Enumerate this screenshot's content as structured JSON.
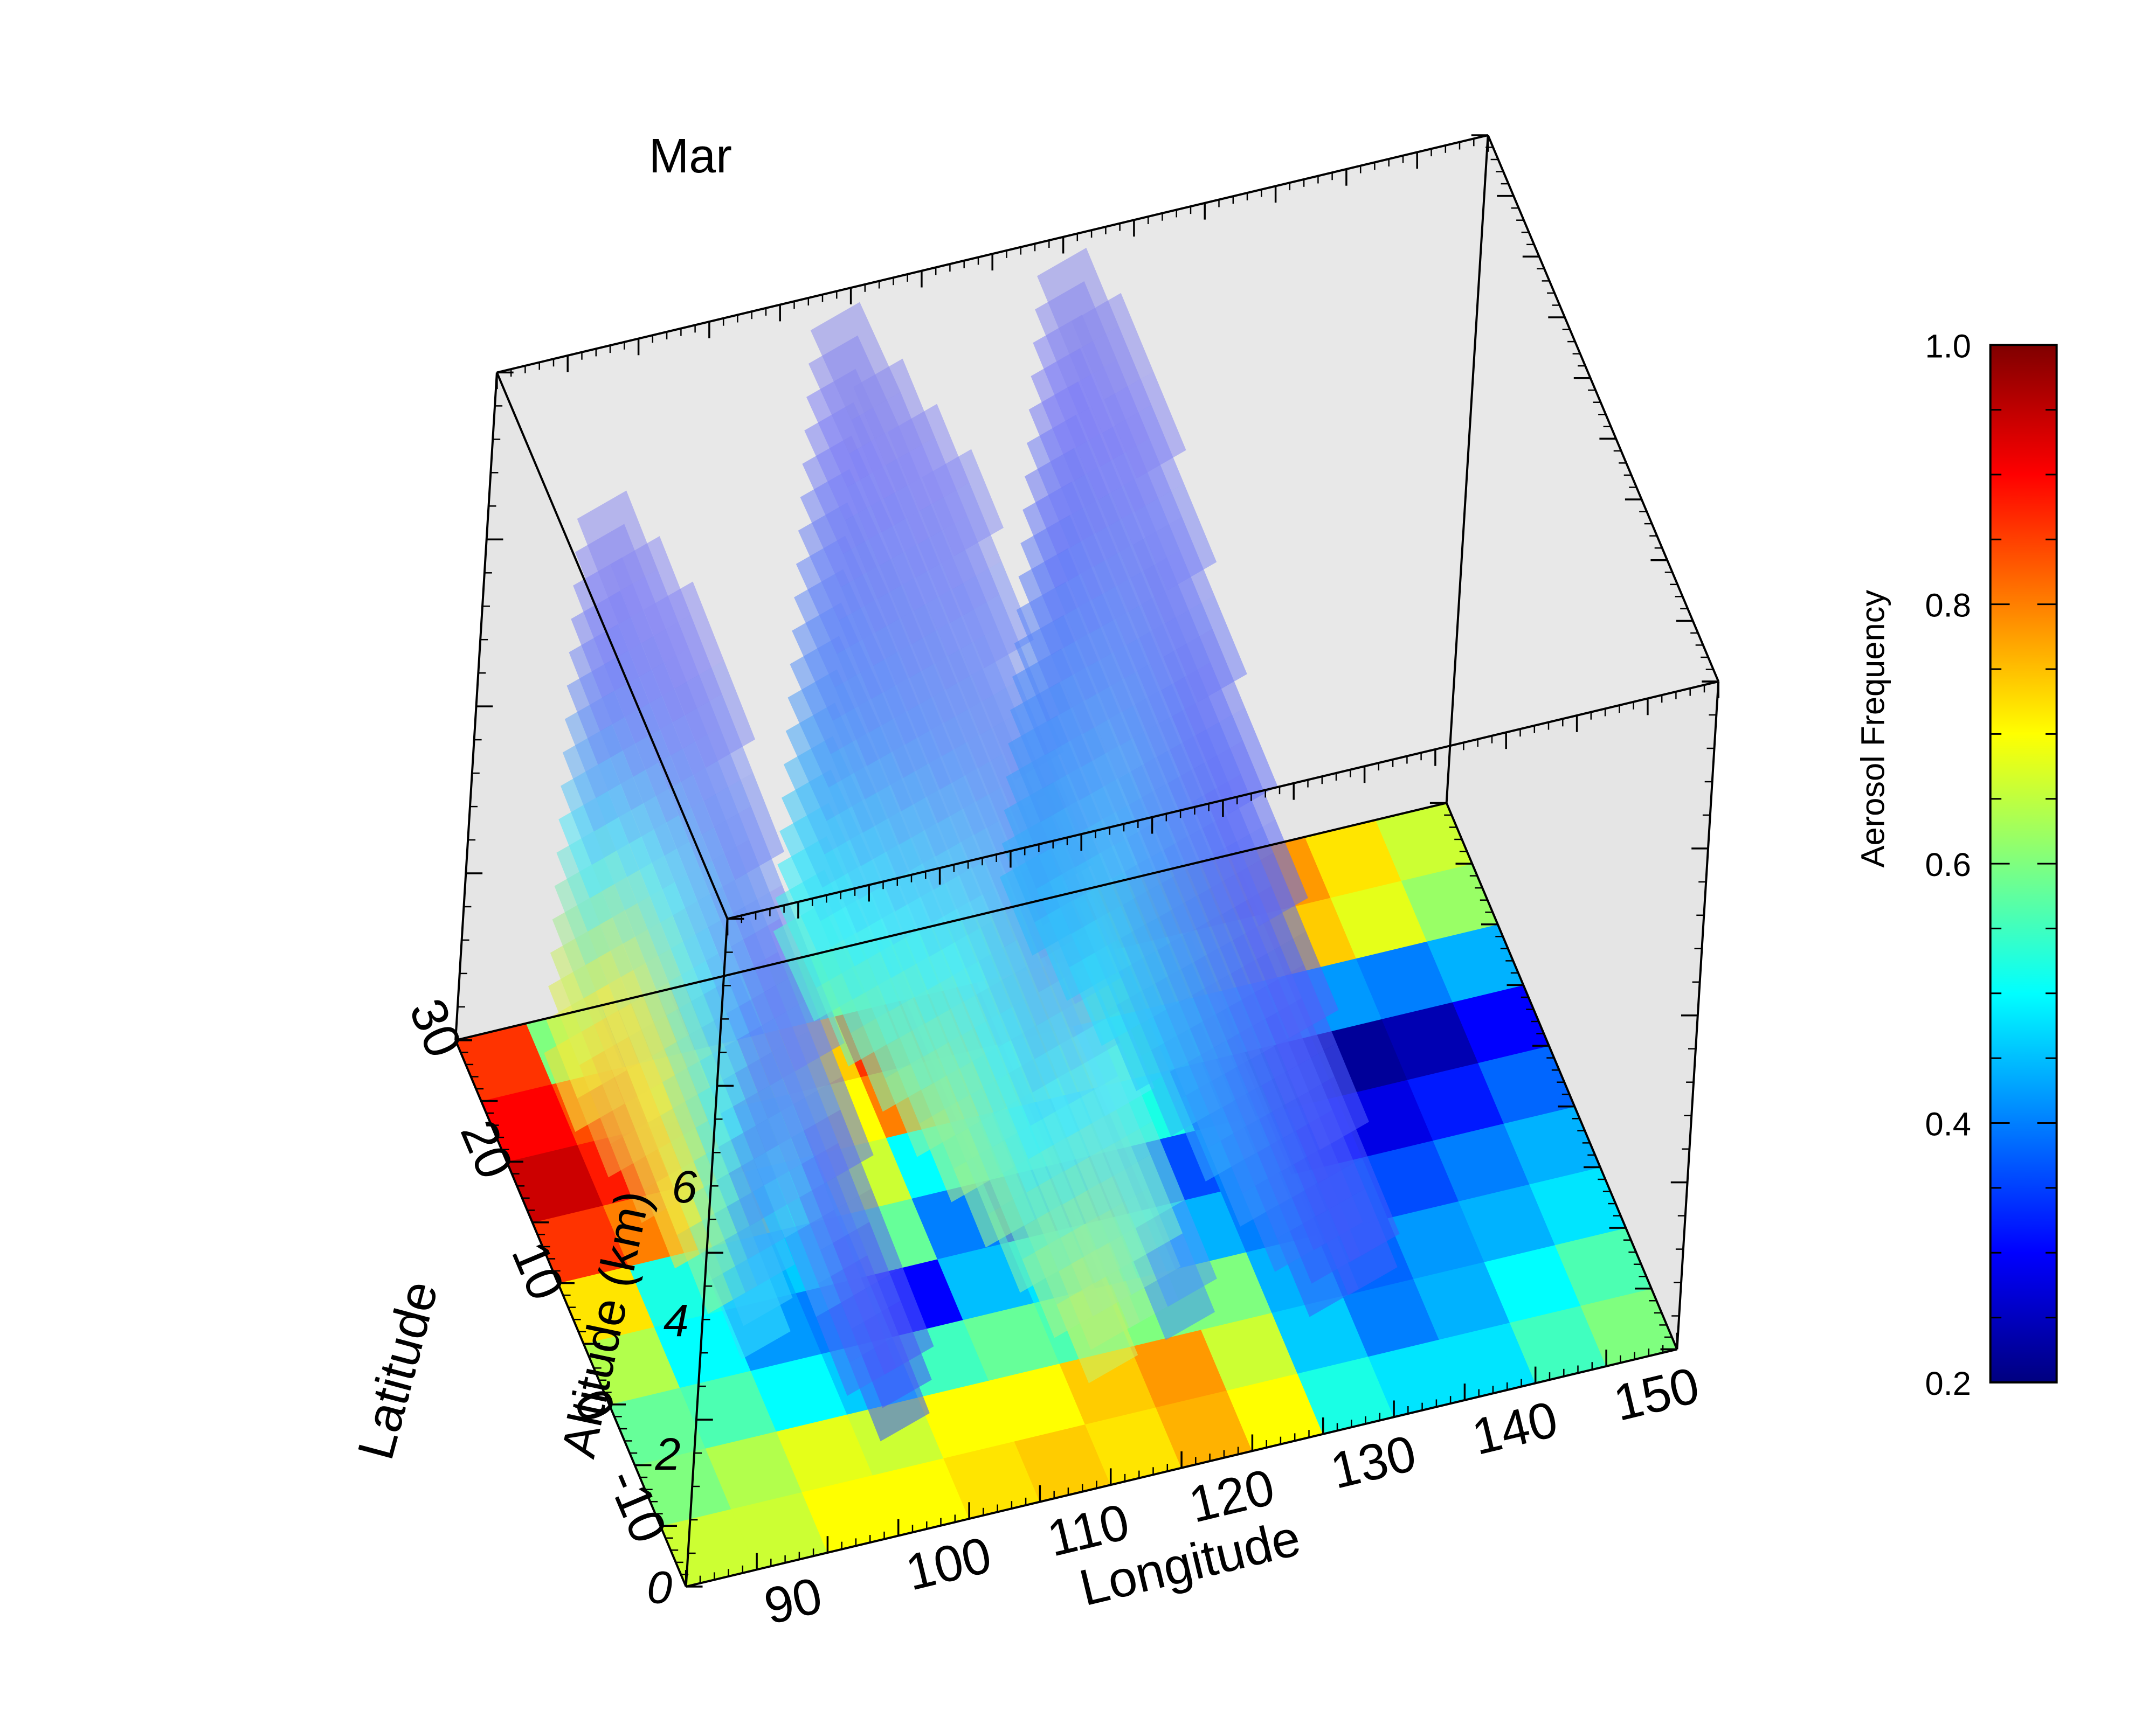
{
  "chart_data": {
    "type": "heatmap",
    "title": "Mar",
    "xlabel": "Longitude",
    "ylabel": "Latitude",
    "zlabel": "Altitude (km)",
    "x_ticks": [
      "90",
      "100",
      "110",
      "120",
      "130",
      "140",
      "150"
    ],
    "y_ticks": [
      "-10",
      "0",
      "10",
      "20",
      "30"
    ],
    "z_ticks": [
      "0",
      "2",
      "4",
      "6"
    ],
    "xlim": [
      80,
      150
    ],
    "ylim": [
      -15,
      30
    ],
    "zlim": [
      0,
      10
    ],
    "colorbar": {
      "label": "Aerosol Frequency",
      "range": [
        0.2,
        1.0
      ],
      "ticks": [
        "0.2",
        "0.4",
        "0.6",
        "0.8",
        "1.0"
      ],
      "colors": [
        "#00007f",
        "#0000ff",
        "#007fff",
        "#00ffff",
        "#7fff7f",
        "#ffff00",
        "#ff7f00",
        "#ff0000",
        "#7f0000"
      ]
    },
    "map": {
      "lon_edges": [
        80,
        85,
        90,
        95,
        100,
        105,
        110,
        115,
        120,
        125,
        130,
        135,
        140,
        145,
        150
      ],
      "lat_edges": [
        -15,
        -10,
        -5,
        0,
        5,
        10,
        15,
        20,
        25,
        30
      ],
      "values": [
        [
          0.66,
          0.66,
          0.7,
          0.7,
          0.72,
          0.74,
          0.72,
          0.76,
          0.7,
          0.52,
          0.48,
          0.48,
          0.55,
          0.6
        ],
        [
          0.6,
          0.64,
          0.68,
          0.66,
          0.7,
          0.7,
          0.74,
          0.78,
          0.66,
          0.46,
          0.4,
          0.44,
          0.5,
          0.56
        ],
        [
          0.58,
          0.56,
          0.5,
          0.46,
          0.55,
          0.58,
          0.56,
          0.6,
          0.6,
          0.44,
          0.38,
          0.42,
          0.44,
          0.48
        ],
        [
          0.64,
          0.5,
          0.42,
          0.4,
          0.3,
          0.45,
          0.48,
          0.52,
          0.44,
          0.4,
          0.38,
          0.36,
          0.4,
          0.44
        ],
        [
          0.72,
          0.52,
          0.44,
          0.46,
          0.58,
          0.4,
          0.3,
          0.32,
          0.36,
          0.4,
          0.3,
          0.28,
          0.32,
          0.38
        ],
        [
          0.86,
          0.8,
          0.74,
          0.52,
          0.66,
          0.5,
          0.52,
          0.44,
          0.52,
          0.38,
          0.24,
          0.22,
          0.24,
          0.3
        ],
        [
          0.94,
          0.88,
          0.8,
          0.6,
          0.7,
          0.8,
          0.74,
          0.7,
          0.56,
          0.52,
          0.46,
          0.42,
          0.4,
          0.44
        ],
        [
          0.9,
          0.84,
          0.78,
          0.68,
          0.74,
          0.86,
          0.8,
          0.72,
          0.72,
          0.66,
          0.7,
          0.74,
          0.68,
          0.62
        ],
        [
          0.86,
          0.6,
          0.4,
          0.32,
          0.56,
          0.6,
          0.64,
          0.66,
          0.76,
          0.8,
          0.8,
          0.78,
          0.72,
          0.66
        ]
      ]
    },
    "curtains": [
      {
        "track": [
          [
            95,
            -15
          ],
          [
            86,
            25
          ]
        ],
        "z_edges": [
          0,
          0.5,
          1,
          1.5,
          2,
          2.5,
          3,
          3.5,
          4,
          4.5,
          5,
          5.5,
          6,
          6.5,
          7,
          7.5,
          8,
          8.5
        ],
        "lat_edges": [
          -15,
          -11,
          -7,
          -3,
          1,
          5,
          9,
          13,
          17,
          21,
          25
        ],
        "values": [
          [
            null,
            null,
            null,
            null,
            0.48,
            0.6,
            0.72,
            0.76,
            0.78,
            0.72
          ],
          [
            null,
            null,
            null,
            null,
            0.46,
            0.58,
            0.7,
            0.74,
            0.76,
            0.7
          ],
          [
            null,
            null,
            null,
            null,
            0.44,
            0.56,
            0.68,
            0.72,
            0.74,
            0.68
          ],
          [
            0.34,
            0.36,
            null,
            null,
            0.42,
            0.54,
            0.64,
            0.7,
            0.72,
            0.66
          ],
          [
            0.32,
            0.34,
            0.4,
            null,
            0.4,
            0.52,
            0.6,
            0.68,
            0.7,
            0.62
          ],
          [
            0.32,
            0.33,
            0.38,
            0.44,
            0.4,
            0.5,
            0.58,
            0.66,
            0.66,
            0.58
          ],
          [
            null,
            0.32,
            0.36,
            0.42,
            0.38,
            0.48,
            0.56,
            0.62,
            0.62,
            0.54
          ],
          [
            null,
            null,
            0.34,
            0.4,
            0.38,
            0.46,
            0.52,
            0.58,
            0.58,
            0.5
          ],
          [
            null,
            null,
            0.33,
            0.38,
            0.36,
            0.44,
            0.5,
            0.54,
            0.54,
            0.46
          ],
          [
            null,
            null,
            null,
            0.36,
            0.36,
            0.42,
            0.46,
            0.5,
            0.48,
            0.42
          ],
          [
            null,
            null,
            null,
            0.34,
            0.34,
            0.4,
            0.44,
            0.46,
            0.44,
            0.4
          ],
          [
            null,
            null,
            null,
            null,
            0.33,
            0.38,
            0.42,
            0.42,
            0.4,
            0.36
          ],
          [
            null,
            null,
            null,
            null,
            null,
            0.36,
            0.38,
            0.38,
            0.36,
            0.34
          ],
          [
            null,
            null,
            null,
            null,
            null,
            0.34,
            0.36,
            0.35,
            0.34,
            0.32
          ],
          [
            null,
            null,
            null,
            null,
            null,
            null,
            0.34,
            0.33,
            0.32,
            0.31
          ],
          [
            null,
            null,
            null,
            null,
            null,
            null,
            0.32,
            0.31,
            0.31,
            0.3
          ],
          [
            null,
            null,
            null,
            null,
            null,
            null,
            null,
            0.3,
            0.3,
            0.29
          ]
        ]
      },
      {
        "track": [
          [
            115,
            -15
          ],
          [
            104,
            30
          ]
        ],
        "z_edges": [
          0,
          0.5,
          1,
          1.5,
          2,
          2.5,
          3,
          3.5,
          4,
          4.5,
          5,
          5.5,
          6,
          6.5,
          7,
          7.5,
          8,
          8.5,
          9,
          9.5
        ],
        "lat_edges": [
          -15,
          -11,
          -7,
          -3,
          1,
          5,
          9,
          13,
          17,
          21,
          25,
          30
        ],
        "values": [
          [
            null,
            null,
            0.66,
            0.62,
            0.58,
            0.6,
            0.62,
            0.6,
            0.58,
            0.56,
            0.54
          ],
          [
            null,
            null,
            0.64,
            0.6,
            0.56,
            0.58,
            0.6,
            0.58,
            0.56,
            0.54,
            0.52
          ],
          [
            null,
            null,
            0.62,
            0.58,
            0.54,
            0.56,
            0.58,
            0.56,
            0.54,
            0.52,
            0.5
          ],
          [
            null,
            0.6,
            0.6,
            0.56,
            0.52,
            0.54,
            0.56,
            0.54,
            0.52,
            0.5,
            0.48
          ],
          [
            0.4,
            0.58,
            0.58,
            0.54,
            0.5,
            0.52,
            0.54,
            0.52,
            0.5,
            0.48,
            0.46
          ],
          [
            0.4,
            0.56,
            0.56,
            0.52,
            0.48,
            0.5,
            0.52,
            0.5,
            0.48,
            0.46,
            0.44
          ],
          [
            null,
            0.54,
            0.54,
            0.5,
            0.46,
            0.48,
            0.5,
            0.48,
            0.46,
            0.44,
            0.42
          ],
          [
            null,
            null,
            0.52,
            0.48,
            0.45,
            0.46,
            0.48,
            0.46,
            0.44,
            0.42,
            0.4
          ],
          [
            null,
            null,
            0.5,
            0.46,
            0.44,
            0.45,
            0.46,
            0.44,
            0.42,
            0.4,
            0.38
          ],
          [
            null,
            null,
            null,
            0.44,
            0.42,
            0.43,
            0.44,
            0.42,
            0.4,
            0.38,
            0.37
          ],
          [
            null,
            null,
            null,
            0.42,
            0.4,
            0.41,
            0.42,
            0.4,
            0.38,
            0.37,
            0.36
          ],
          [
            null,
            null,
            null,
            null,
            0.38,
            0.4,
            0.4,
            0.38,
            0.37,
            0.36,
            0.35
          ],
          [
            null,
            null,
            null,
            null,
            0.37,
            0.38,
            0.38,
            0.37,
            0.36,
            0.35,
            0.34
          ],
          [
            null,
            null,
            null,
            null,
            null,
            0.37,
            0.37,
            0.36,
            0.35,
            0.34,
            0.33
          ],
          [
            null,
            null,
            null,
            null,
            null,
            0.36,
            0.36,
            0.35,
            0.34,
            0.33,
            0.32
          ],
          [
            null,
            null,
            null,
            null,
            null,
            null,
            0.35,
            0.34,
            0.33,
            0.32,
            0.31
          ],
          [
            null,
            null,
            null,
            null,
            null,
            null,
            0.34,
            0.33,
            0.32,
            0.31,
            0.3
          ],
          [
            null,
            null,
            null,
            null,
            null,
            null,
            null,
            0.32,
            0.31,
            0.3,
            0.29
          ],
          [
            null,
            null,
            null,
            null,
            null,
            null,
            null,
            0.31,
            0.3,
            0.29,
            0.28
          ]
        ]
      },
      {
        "track": [
          [
            130,
            -10
          ],
          [
            120,
            30
          ]
        ],
        "z_edges": [
          0,
          0.5,
          1,
          1.5,
          2,
          2.5,
          3,
          3.5,
          4,
          4.5,
          5,
          5.5,
          6,
          6.5,
          7,
          7.5,
          8,
          8.5,
          9,
          9.5
        ],
        "lat_edges": [
          -10,
          -6,
          -2,
          2,
          6,
          10,
          14,
          18,
          22,
          26,
          30
        ],
        "values": [
          [
            null,
            0.36,
            0.38,
            0.4,
            0.42,
            0.44,
            0.46,
            0.48,
            0.46,
            0.44
          ],
          [
            null,
            0.35,
            0.37,
            0.39,
            0.41,
            0.43,
            0.45,
            0.47,
            0.45,
            0.43
          ],
          [
            0.34,
            0.34,
            0.36,
            0.38,
            0.4,
            0.42,
            0.44,
            0.46,
            0.44,
            0.42
          ],
          [
            0.33,
            0.33,
            0.35,
            0.37,
            0.39,
            0.41,
            0.43,
            0.45,
            0.43,
            0.41
          ],
          [
            null,
            0.32,
            0.34,
            0.36,
            0.38,
            0.4,
            0.42,
            0.44,
            0.42,
            0.4
          ],
          [
            null,
            0.32,
            0.33,
            0.35,
            0.37,
            0.39,
            0.41,
            0.43,
            0.41,
            0.39
          ],
          [
            null,
            null,
            0.32,
            0.34,
            0.36,
            0.38,
            0.4,
            0.42,
            0.4,
            0.38
          ],
          [
            null,
            null,
            0.32,
            0.33,
            0.35,
            0.37,
            0.39,
            0.41,
            0.39,
            0.37
          ],
          [
            null,
            null,
            null,
            0.32,
            0.34,
            0.36,
            0.38,
            0.4,
            0.38,
            0.36
          ],
          [
            null,
            null,
            null,
            0.32,
            0.33,
            0.35,
            0.37,
            0.38,
            0.37,
            0.35
          ],
          [
            null,
            null,
            null,
            null,
            0.32,
            0.34,
            0.36,
            0.37,
            0.36,
            0.34
          ],
          [
            null,
            null,
            null,
            null,
            0.32,
            0.33,
            0.35,
            0.36,
            0.35,
            0.33
          ],
          [
            null,
            null,
            null,
            null,
            null,
            0.32,
            0.34,
            0.35,
            0.34,
            0.32
          ],
          [
            null,
            null,
            null,
            null,
            null,
            0.32,
            0.33,
            0.34,
            0.33,
            0.32
          ],
          [
            null,
            null,
            null,
            null,
            null,
            null,
            0.32,
            0.33,
            0.32,
            0.31
          ],
          [
            null,
            null,
            null,
            null,
            null,
            null,
            0.32,
            0.32,
            0.31,
            0.3
          ],
          [
            null,
            null,
            null,
            null,
            null,
            null,
            null,
            0.31,
            0.3,
            0.3
          ],
          [
            null,
            null,
            null,
            null,
            null,
            null,
            null,
            0.3,
            0.3,
            0.29
          ],
          [
            null,
            null,
            null,
            null,
            null,
            null,
            null,
            null,
            0.29,
            0.28
          ]
        ]
      }
    ]
  }
}
